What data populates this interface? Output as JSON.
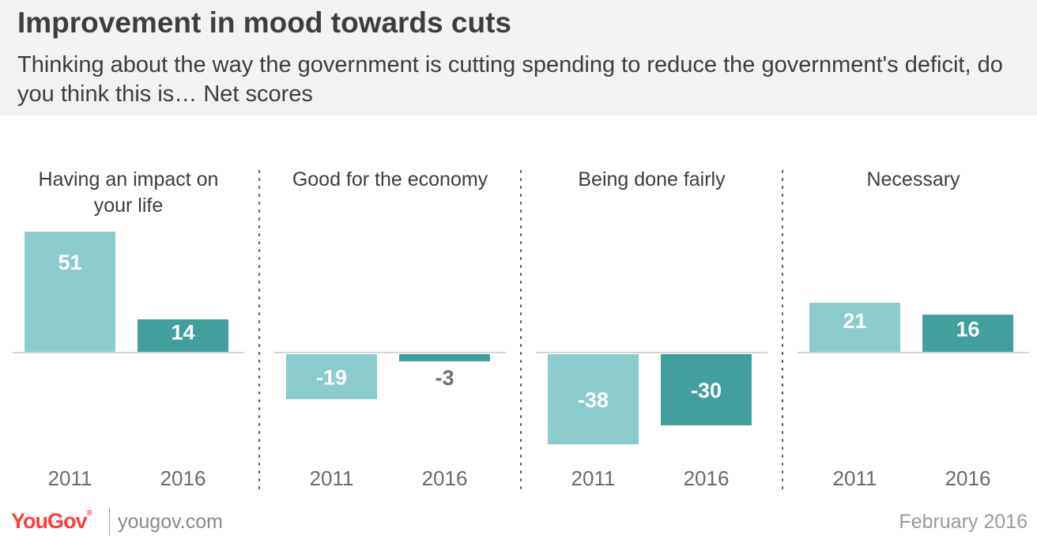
{
  "title": "Improvement in mood towards cuts",
  "subtitle": "Thinking about the way the government is cutting spending to reduce the government's deficit, do you think this is… Net scores",
  "footer": {
    "logo": "YouGov",
    "url": "yougov.com",
    "date": "February 2016"
  },
  "colors": {
    "series_2011": "#8ccbcb",
    "series_2016": "#439e9e",
    "value_light": "#ffffff",
    "value_outside": "#707070"
  },
  "chart_data": {
    "type": "bar",
    "categories": [
      "Having an impact on your life",
      "Good for the economy",
      "Being done fairly",
      "Necessary"
    ],
    "x": [
      "2011",
      "2016"
    ],
    "series": [
      {
        "name": "2011",
        "values": [
          51,
          -19,
          -38,
          21
        ]
      },
      {
        "name": "2016",
        "values": [
          14,
          -3,
          -30,
          16
        ]
      }
    ],
    "title": "",
    "xlabel": "",
    "ylabel": "",
    "ylim": [
      -40,
      55
    ],
    "grid": false,
    "legend": "none"
  }
}
